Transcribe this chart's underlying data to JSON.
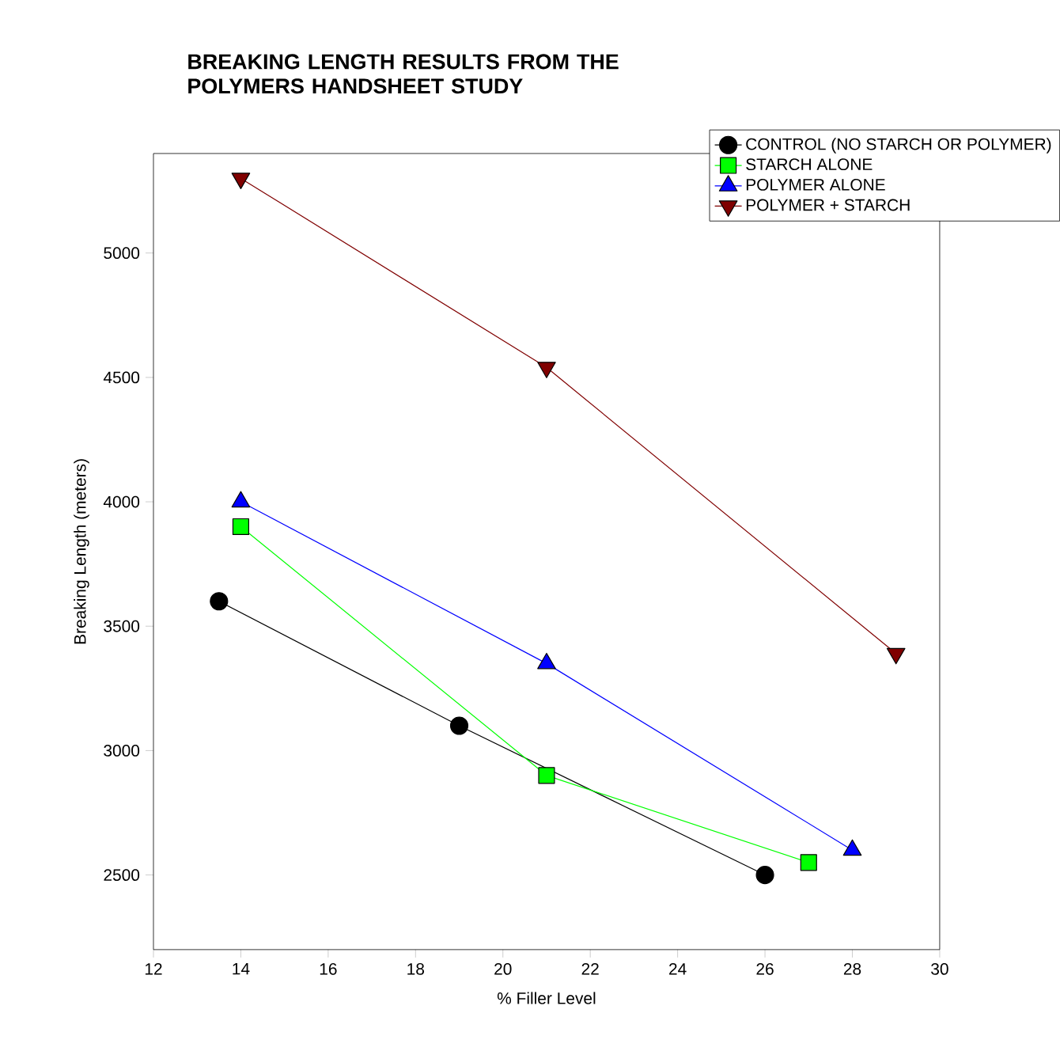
{
  "chart_data": {
    "type": "line",
    "title": "BREAKING LENGTH RESULTS FROM THE POLYMERS HANDSHEET STUDY",
    "xlabel": "% Filler Level",
    "ylabel": "Breaking Length (meters)",
    "xlim": [
      12,
      30
    ],
    "xticks": [
      12,
      14,
      16,
      18,
      20,
      22,
      24,
      26,
      28,
      30
    ],
    "ylim": [
      2200,
      5400
    ],
    "yticks": [
      2500,
      3000,
      3500,
      4000,
      4500,
      5000
    ],
    "legend": "top right",
    "grid": false,
    "line_style": "solid",
    "series": [
      {
        "name": "CONTROL (NO STARCH OR POLYMER)",
        "color": "#000000",
        "marker": "circle",
        "x": [
          13.5,
          19,
          26
        ],
        "values": [
          3600,
          3100,
          2500
        ]
      },
      {
        "name": "STARCH ALONE",
        "color": "#00ff00",
        "marker": "square",
        "x": [
          14,
          21,
          27
        ],
        "values": [
          3900,
          2900,
          2550
        ]
      },
      {
        "name": "POLYMER ALONE",
        "color": "#0000ff",
        "marker": "triangle",
        "x": [
          14,
          21,
          28
        ],
        "values": [
          4000,
          3350,
          2600
        ]
      },
      {
        "name": "POLYMER + STARCH",
        "color": "#800000",
        "marker": "triangle-down",
        "x": [
          14,
          21,
          29
        ],
        "values": [
          5300,
          4540,
          3390
        ]
      }
    ]
  }
}
